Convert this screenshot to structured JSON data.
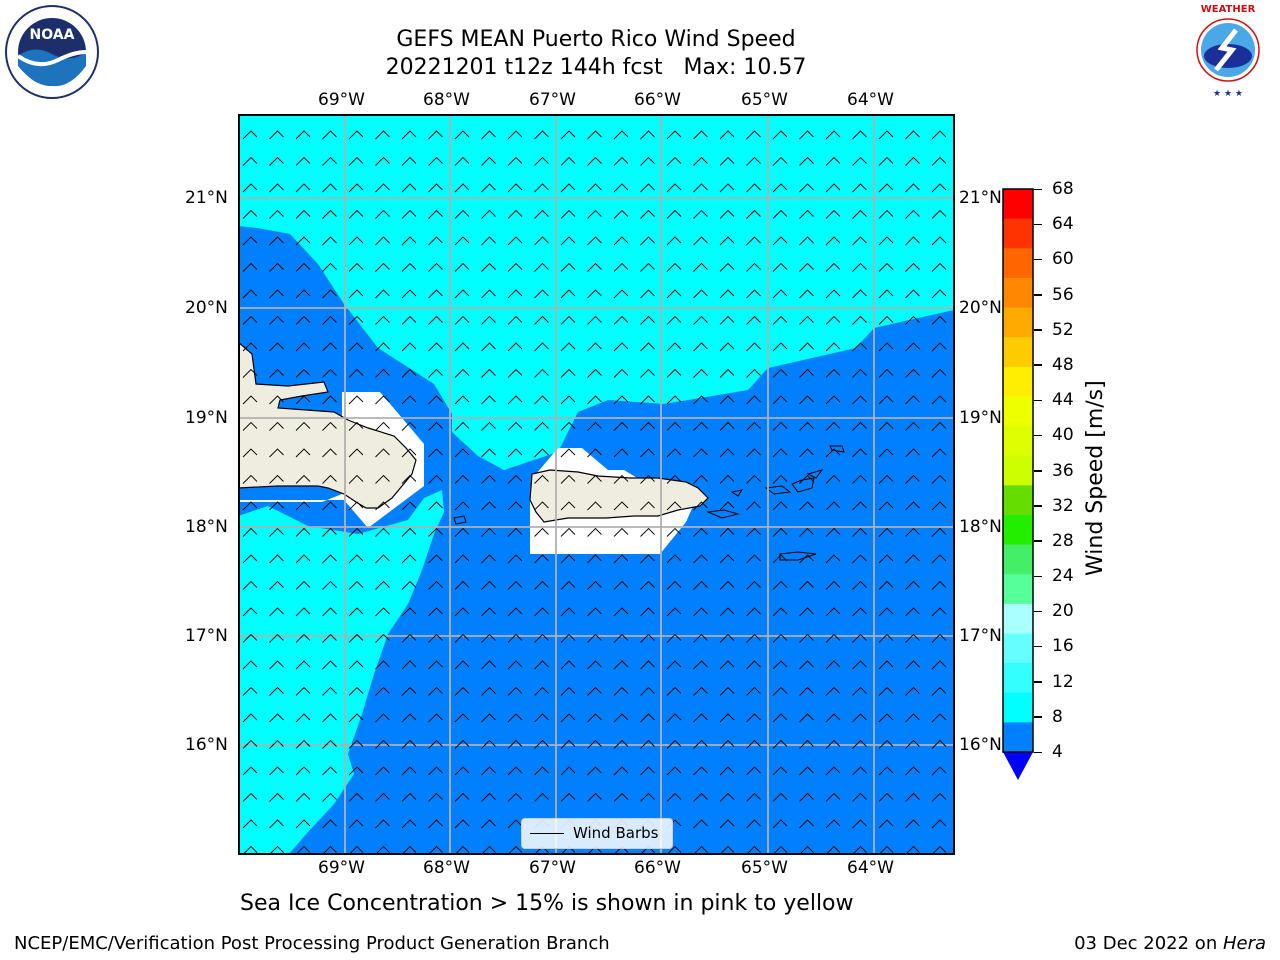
{
  "title": "GEFS MEAN Puerto Rico Wind Speed",
  "subtitle": "20221201 t12z 144h fcst   Max: 10.57",
  "map": {
    "lon_labels": [
      "69°W",
      "68°W",
      "67°W",
      "66°W",
      "65°W",
      "64°W"
    ],
    "lat_labels": [
      "21°N",
      "20°N",
      "19°N",
      "18°N",
      "17°N",
      "16°N"
    ],
    "legend_label": "Wind Barbs"
  },
  "colorbar": {
    "title": "Wind Speed [m/s]",
    "ticks": [
      "68",
      "64",
      "60",
      "56",
      "52",
      "48",
      "44",
      "40",
      "36",
      "32",
      "28",
      "24",
      "20",
      "16",
      "12",
      "8",
      "4"
    ],
    "colors": [
      "#ff0000",
      "#ff3300",
      "#ff6600",
      "#ff8800",
      "#ffaa00",
      "#ffcc00",
      "#ffee00",
      "#eeff00",
      "#ddff00",
      "#ccff00",
      "#66dd00",
      "#22ee00",
      "#44ee66",
      "#55ff99",
      "#aaffff",
      "#66ffff",
      "#33ffff",
      "#00ffff",
      "#0080ff"
    ],
    "under_color": "#0000ff"
  },
  "colors": {
    "low_wind": "#0080ff",
    "mid_wind": "#00ffff",
    "land": "#efede0",
    "white_patch": "#ffffff"
  },
  "note": "Sea Ice Concentration > 15% is shown in pink to yellow",
  "footer": {
    "left": "NCEP/EMC/Verification Post Processing Product Generation Branch",
    "right_prefix": "03 Dec 2022 on ",
    "right_host": "Hera"
  },
  "logos": {
    "noaa": "NOAA",
    "noaa_ring": "NATIONAL OCEANIC AND ATMOSPHERIC ADMINISTRATION · U.S. DEPARTMENT OF COMMERCE",
    "nws_ring": "NATIONAL WEATHER SERVICE"
  }
}
